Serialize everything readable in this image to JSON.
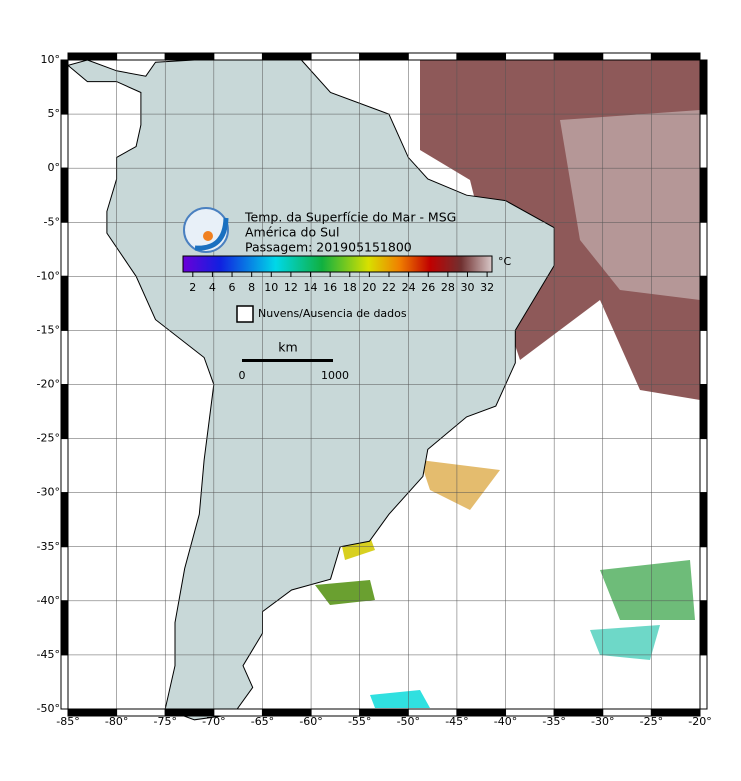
{
  "header": {
    "title": "Temp. da Superfície do Mar - MSG",
    "region": "América do Sul",
    "pass": "Passagem: 201905151800"
  },
  "colorbar": {
    "clim": [
      1,
      32.5
    ],
    "ticks": [
      2,
      4,
      6,
      8,
      10,
      12,
      14,
      16,
      18,
      20,
      22,
      24,
      26,
      28,
      30,
      32
    ],
    "unit": "°C"
  },
  "legend": {
    "no_data": "Nuvens/Ausencia de dados"
  },
  "scale": {
    "unit": "km",
    "labels": [
      0,
      1000
    ]
  },
  "map": {
    "xlim": [
      -85,
      -20
    ],
    "ylim": [
      -50,
      10
    ],
    "grid": true,
    "xticks": [
      {
        "value": -85,
        "label": "-85°"
      },
      {
        "value": -80,
        "label": "-80°"
      },
      {
        "value": -75,
        "label": "-75°"
      },
      {
        "value": -70,
        "label": "-70°"
      },
      {
        "value": -65,
        "label": "-65°"
      },
      {
        "value": -60,
        "label": "-60°"
      },
      {
        "value": -55,
        "label": "-55°"
      },
      {
        "value": -50,
        "label": "-50°"
      },
      {
        "value": -45,
        "label": "-45°"
      },
      {
        "value": -40,
        "label": "-40°"
      },
      {
        "value": -35,
        "label": "-35°"
      },
      {
        "value": -30,
        "label": "-30°"
      },
      {
        "value": -25,
        "label": "-25°"
      },
      {
        "value": -20,
        "label": "-20°"
      }
    ],
    "yticks": [
      {
        "value": 10,
        "label": "10°"
      },
      {
        "value": 5,
        "label": "5°"
      },
      {
        "value": 0,
        "label": "0°"
      },
      {
        "value": -5,
        "label": "-5°"
      },
      {
        "value": -10,
        "label": "-10°"
      },
      {
        "value": -15,
        "label": "-15°"
      },
      {
        "value": -20,
        "label": "-20°"
      },
      {
        "value": -25,
        "label": "-25°"
      },
      {
        "value": -30,
        "label": "-30°"
      },
      {
        "value": -35,
        "label": "-35°"
      },
      {
        "value": -40,
        "label": "-40°"
      },
      {
        "value": -45,
        "label": "-45°"
      },
      {
        "value": -50,
        "label": "-50°"
      }
    ]
  }
}
